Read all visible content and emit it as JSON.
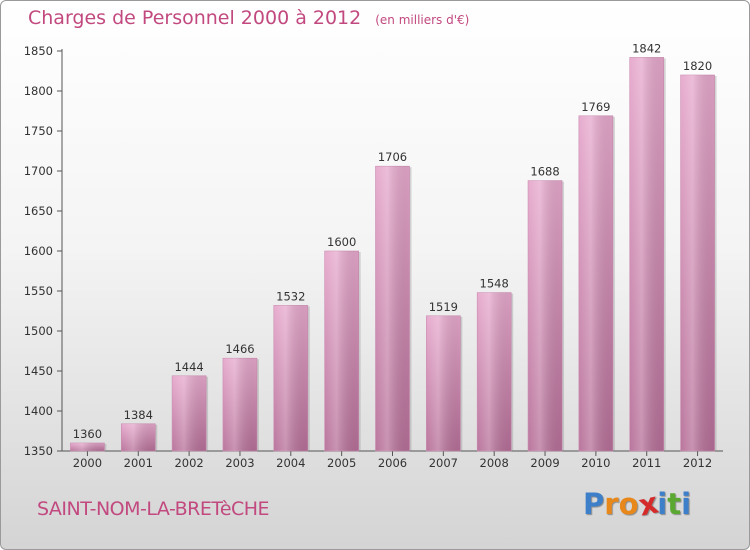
{
  "title": "Charges de Personnel 2000 à 2012",
  "unit_note": "(en milliers d'€)",
  "location": "SAINT-NOM-LA-BRETèCHE",
  "logo": {
    "letters": [
      "P",
      "r",
      "o",
      "x",
      "i",
      "t",
      "i"
    ],
    "colors": [
      "#3d7fc8",
      "#e8881a",
      "#e8881a",
      "#d52a2a",
      "#3d7fc8",
      "#5aa832",
      "#3d7fc8"
    ]
  },
  "colors": {
    "bar_light": "#e6a8cc",
    "bar_dark": "#b66f98",
    "text_accent": "#c2497f"
  },
  "chart_data": {
    "type": "bar",
    "title": "Charges de Personnel 2000 à 2012",
    "subtitle": "(en milliers d'€)",
    "xlabel": "",
    "ylabel": "",
    "categories": [
      "2000",
      "2001",
      "2002",
      "2003",
      "2004",
      "2005",
      "2006",
      "2007",
      "2008",
      "2009",
      "2010",
      "2011",
      "2012"
    ],
    "values": [
      1360,
      1384,
      1444,
      1466,
      1532,
      1600,
      1706,
      1519,
      1548,
      1688,
      1769,
      1842,
      1820
    ],
    "ylim": [
      1350,
      1850
    ],
    "yticks": [
      1350,
      1400,
      1450,
      1500,
      1550,
      1600,
      1650,
      1700,
      1750,
      1800,
      1850
    ],
    "grid": false,
    "legend": "none"
  }
}
